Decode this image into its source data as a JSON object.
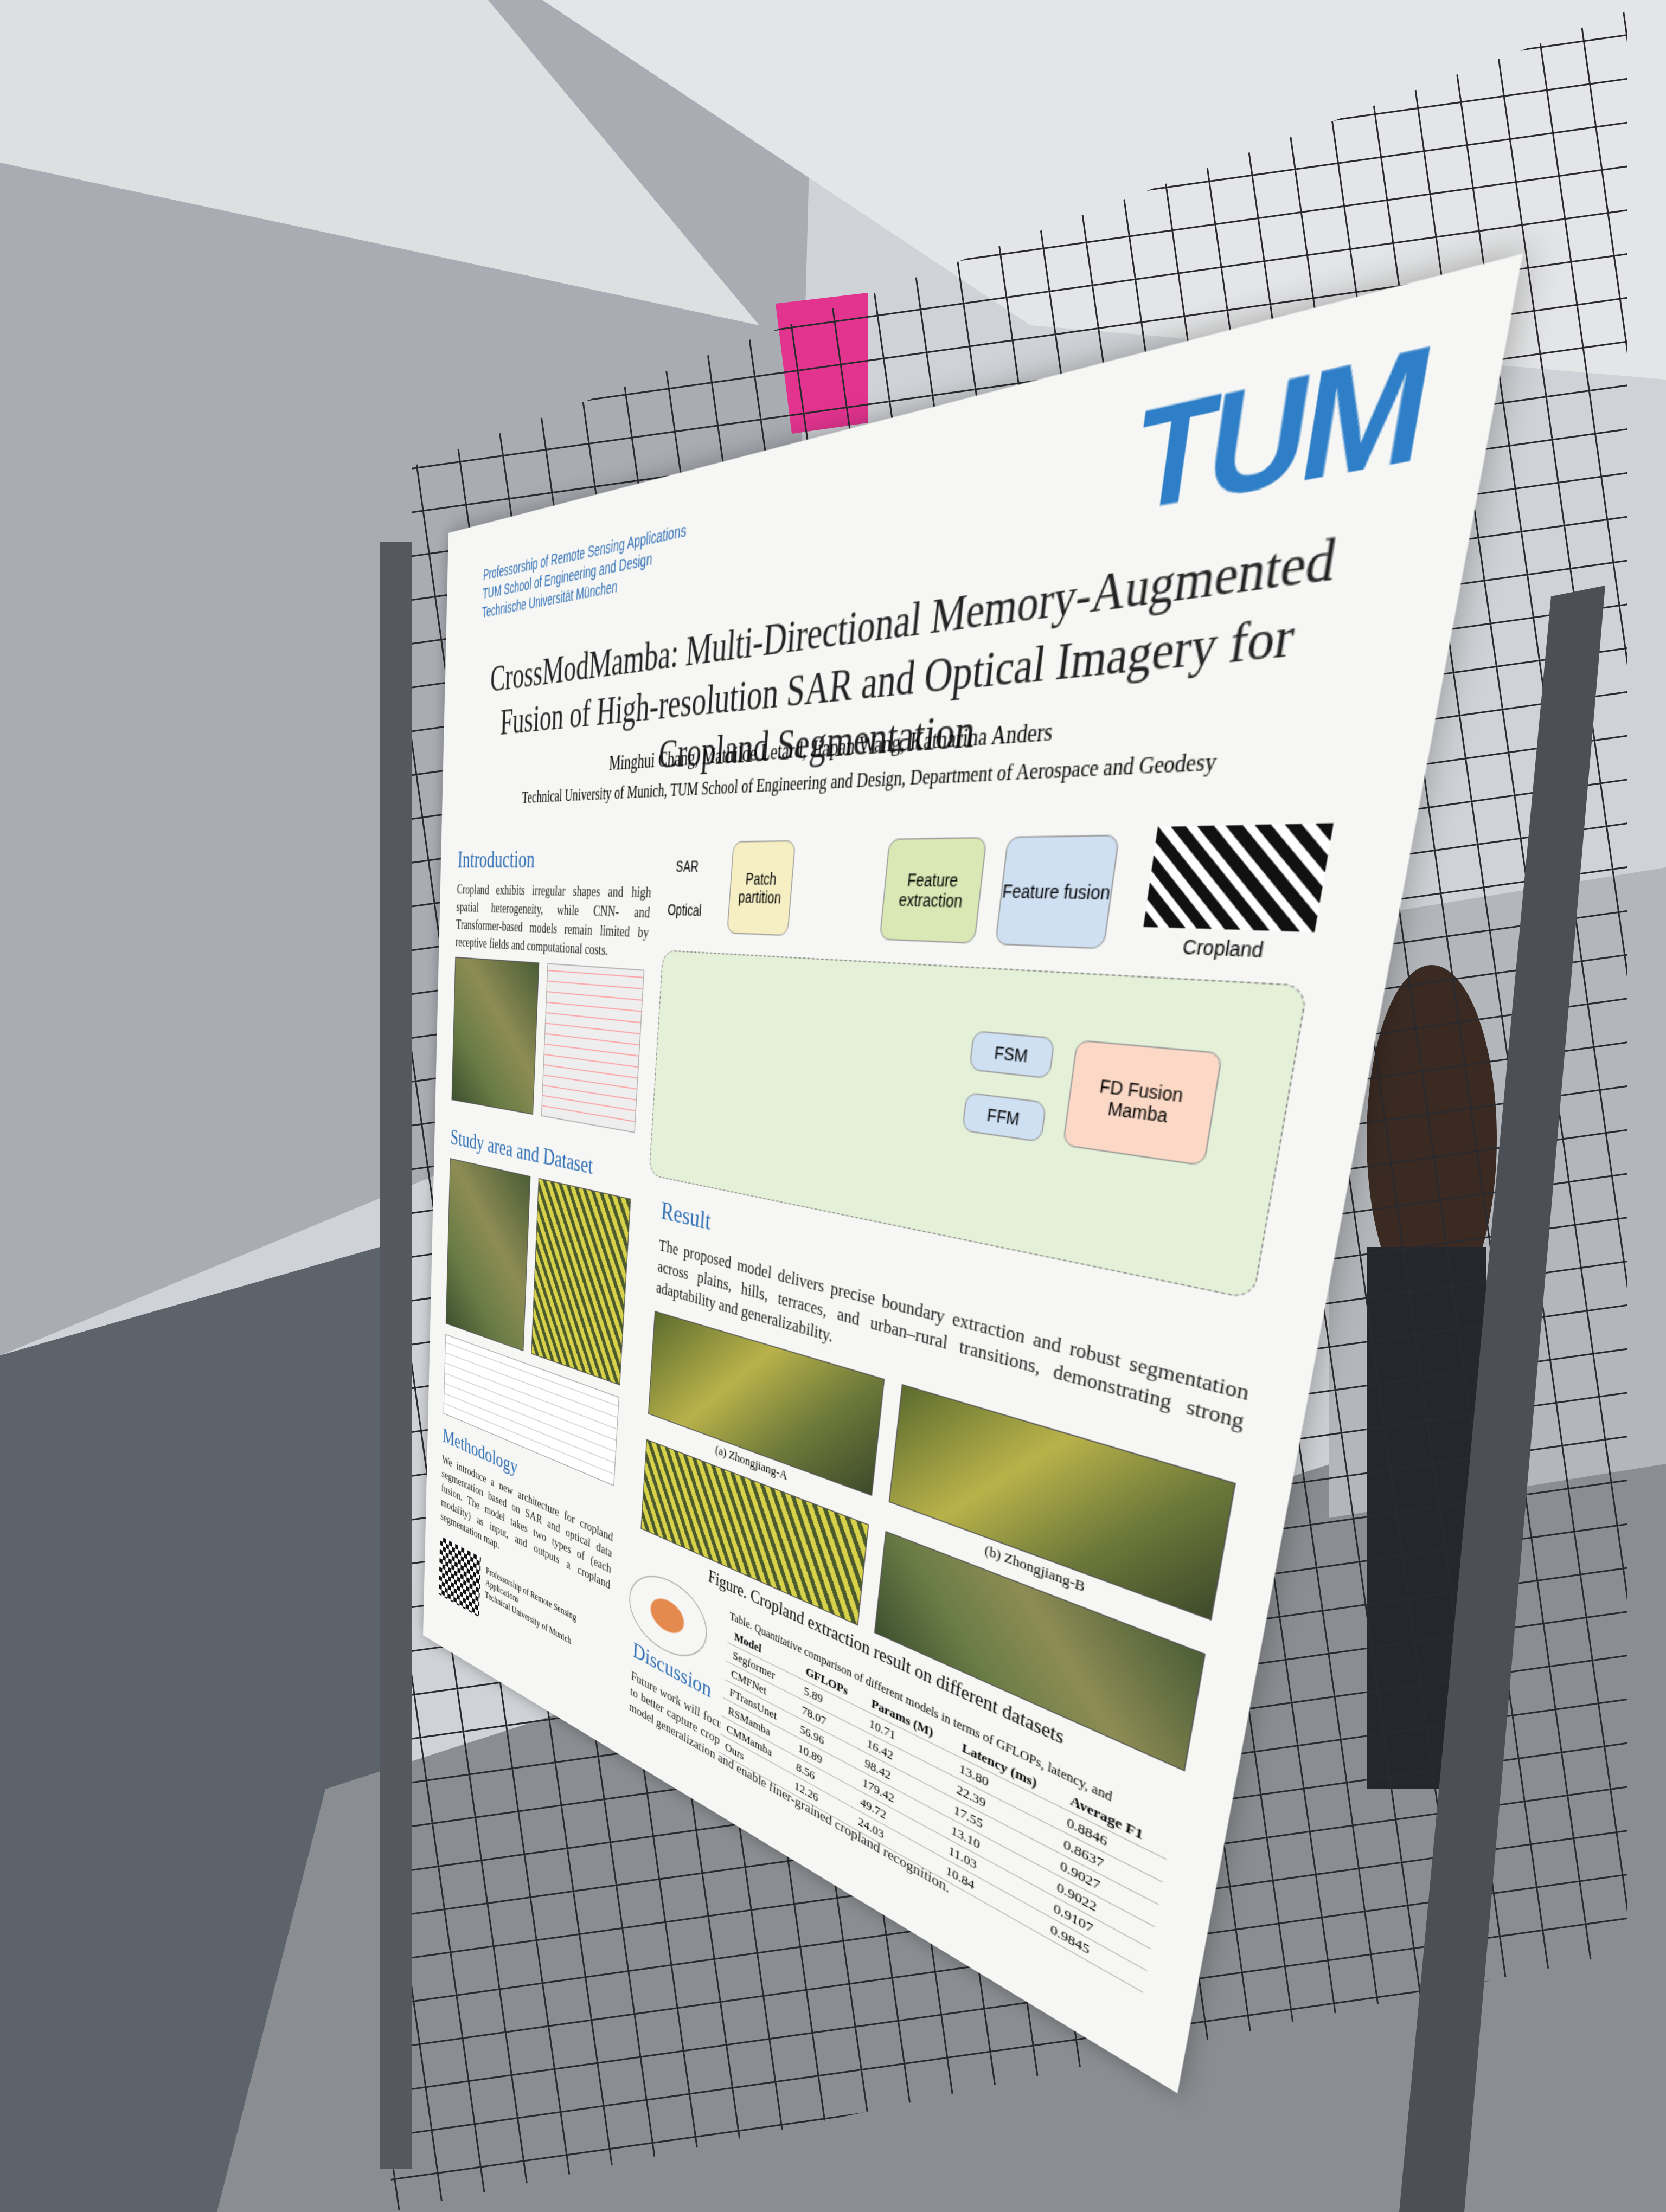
{
  "header": {
    "institute": [
      "Professorship of Remote Sensing Applications",
      "TUM School of Engineering and Design",
      "Technische Universität München"
    ],
    "logo": "TUM",
    "title": "CrossModMamba: Multi-Directional Memory-Augmented Fusion of High-resolution SAR and Optical Imagery for Cropland Segmentation",
    "authors": "Minghui Chang, Mathilde Letard, Jiapan Wang, Katharina Anders",
    "affiliation": "Technical University of Munich, TUM School of Engineering and Design, Department of Aerospace and Geodesy"
  },
  "introduction": {
    "heading": "Introduction",
    "text": "Cropland exhibits irregular shapes and high spatial heterogeneity, while CNN- and Transformer-based models remain limited by receptive fields and computational costs."
  },
  "study_area": {
    "heading": "Study area and Dataset"
  },
  "methodology": {
    "heading": "Methodology",
    "text": "We introduce a new architecture for cropland segmentation based on SAR and optical data fusion. The model takes two types of (each modality) as input, and outputs a cropland segmentation map."
  },
  "diagram": {
    "sar": "SAR",
    "optical": "Optical",
    "patch_partition": "Patch partition",
    "feature_extraction": "Feature extraction",
    "feature_fusion": "Feature fusion",
    "cropland": "Cropland",
    "fusion": "FD Fusion Mamba",
    "fsm": "FSM",
    "ffm": "FFM"
  },
  "result": {
    "heading": "Result",
    "text": "The proposed model delivers precise boundary extraction and robust segmentation across plains, hills, terraces, and urban–rural transitions, demonstrating strong adaptability and generalizability.",
    "captions": [
      "(a) Zhongjiang-A",
      "(b) Zhongjiang-B"
    ],
    "figure_caption": "Figure. Cropland extraction result on different datasets"
  },
  "table": {
    "caption": "Table. Quantitative comparison of different models in terms of GFLOPs, latency, and parameters",
    "columns": [
      "Model",
      "GFLOPs",
      "Params (M)",
      "Latency (ms)",
      "Average F1"
    ],
    "rows": [
      [
        "Segformer",
        "5.89",
        "10.71",
        "13.80",
        "0.8846"
      ],
      [
        "CMFNet",
        "78.07",
        "16.42",
        "22.39",
        "0.8637"
      ],
      [
        "FTransUnet",
        "56.96",
        "98.42",
        "17.55",
        "0.9027"
      ],
      [
        "RSMamba",
        "10.89",
        "179.42",
        "13.10",
        "0.9022"
      ],
      [
        "CMMamba",
        "8.56",
        "49.72",
        "11.03",
        "0.9107"
      ],
      [
        "Ours",
        "12.26",
        "24.03",
        "10.84",
        "0.9845"
      ]
    ]
  },
  "discussion": {
    "heading": "Discussion",
    "text": "Future work will focus on integrating multi-source and multi-temporal remote sensing time series to better capture crop phenological dynamics. This spatiotemporal fusion is expected to improve model generalization and enable finer-grained cropland recognition."
  },
  "contact": [
    "Professorship of Remote Sensing Applications",
    "Technical University of Munich"
  ]
}
